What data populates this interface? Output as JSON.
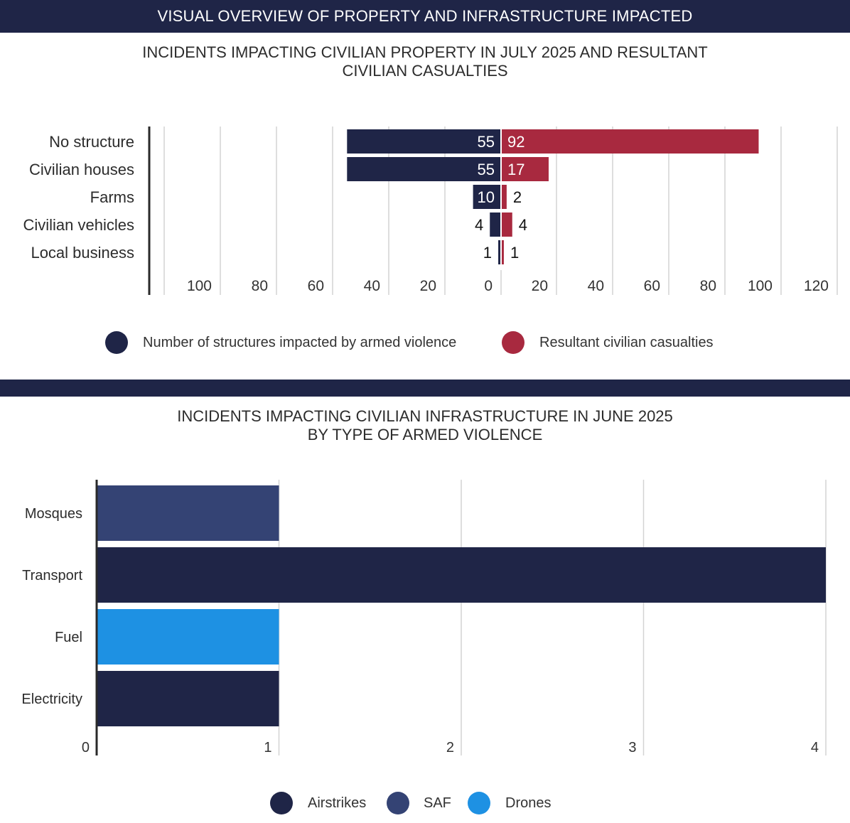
{
  "banner": "VISUAL OVERVIEW OF PROPERTY AND INFRASTRUCTURE IMPACTED",
  "chart_data": [
    {
      "type": "bar",
      "orientation": "horizontal-diverging",
      "title_lines": [
        "INCIDENTS IMPACTING CIVILIAN PROPERTY IN JULY 2025 AND RESULTANT",
        "CIVILIAN CASUALTIES"
      ],
      "categories": [
        "No structure",
        "Civilian houses",
        "Farms",
        "Civilian vehicles",
        "Local business"
      ],
      "series": [
        {
          "name": "Number of structures impacted by armed violence",
          "values": [
            55,
            55,
            10,
            4,
            1
          ],
          "color": "#1f2547",
          "side": "left"
        },
        {
          "name": "Resultant civilian casualties",
          "values": [
            92,
            17,
            2,
            4,
            1
          ],
          "color": "#a8293f",
          "side": "right"
        }
      ],
      "x_ticks_left": [
        "100",
        "80",
        "60",
        "40",
        "20",
        "0"
      ],
      "x_ticks_right": [
        "20",
        "40",
        "60",
        "80",
        "100",
        "120"
      ],
      "xlim": [
        -120,
        120
      ],
      "grid": true,
      "legend_position": "bottom"
    },
    {
      "type": "bar",
      "orientation": "horizontal",
      "title_lines": [
        "INCIDENTS IMPACTING CIVILIAN INFRASTRUCTURE IN JUNE 2025",
        "BY TYPE OF ARMED VIOLENCE"
      ],
      "categories": [
        "Mosques",
        "Transport",
        "Fuel",
        "Electricity"
      ],
      "values": [
        1,
        4,
        1,
        1
      ],
      "bar_series": [
        "SAF",
        "Airstrikes",
        "Drones",
        "Airstrikes"
      ],
      "series": [
        {
          "name": "Airstrikes",
          "color": "#1f2547"
        },
        {
          "name": "SAF",
          "color": "#344374"
        },
        {
          "name": "Drones",
          "color": "#1e91e3"
        }
      ],
      "x_ticks": [
        "0",
        "1",
        "2",
        "3",
        "4"
      ],
      "xlim": [
        0,
        4
      ],
      "grid": true,
      "legend_position": "bottom"
    }
  ]
}
